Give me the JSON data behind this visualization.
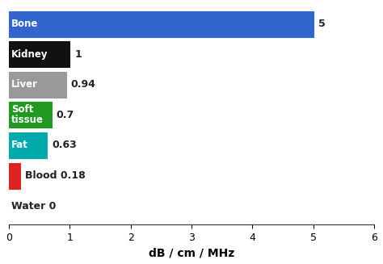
{
  "categories": [
    "Water",
    "Blood",
    "Fat",
    "Soft\ntissue",
    "Liver",
    "Kidney",
    "Bone"
  ],
  "values": [
    0,
    0.18,
    0.63,
    0.7,
    0.94,
    1,
    5
  ],
  "bar_colors": [
    "#ffffff",
    "#dd2222",
    "#00aaaa",
    "#229922",
    "#999999",
    "#111111",
    "#3366cc"
  ],
  "bar_edge_colors": [
    "none",
    "#dd2222",
    "#00aaaa",
    "#229922",
    "#999999",
    "#111111",
    "#3366cc"
  ],
  "label_colors": [
    "#000000",
    "#000000",
    "#ffffff",
    "#ffffff",
    "#ffffff",
    "#ffffff",
    "#ffffff"
  ],
  "value_labels": [
    "0",
    "0.18",
    "0.63",
    "0.7",
    "0.94",
    "1",
    "5"
  ],
  "cat_labels": [
    "Water",
    "Blood",
    "Fat",
    "Soft\ntissue",
    "Liver",
    "Kidney",
    "Bone"
  ],
  "xlabel": "dB / cm / MHz",
  "xlim": [
    0,
    6
  ],
  "xticks": [
    0,
    1,
    2,
    3,
    4,
    5,
    6
  ],
  "bar_height": 0.85,
  "label_fontsize": 8.5,
  "value_fontsize": 9,
  "xlabel_fontsize": 10,
  "tick_fontsize": 9,
  "figsize": [
    4.74,
    3.27
  ],
  "dpi": 100
}
